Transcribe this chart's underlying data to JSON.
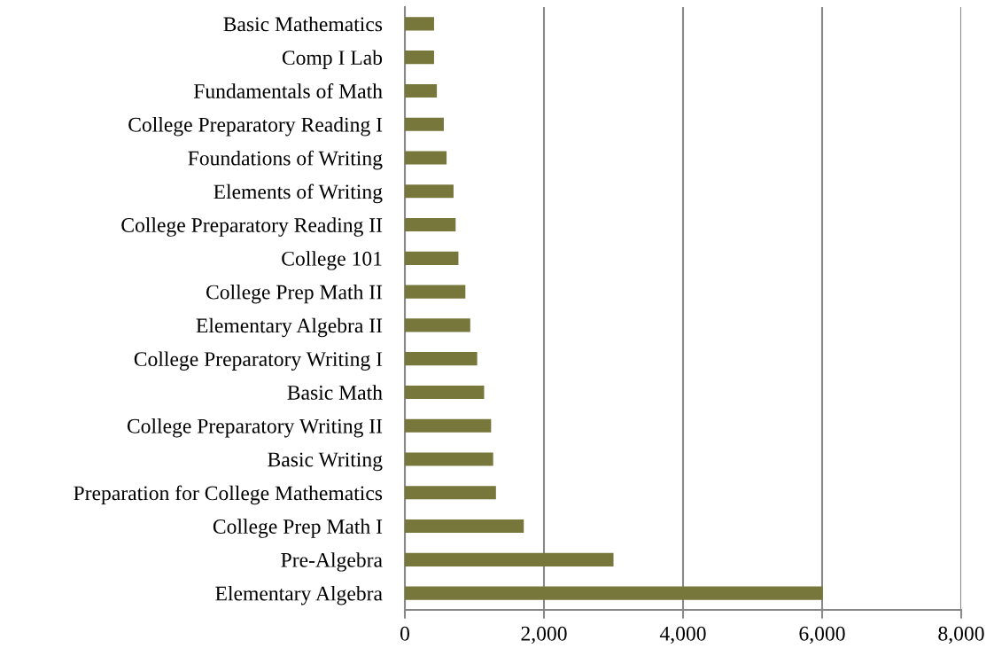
{
  "chart_data": {
    "type": "bar",
    "orientation": "horizontal",
    "categories": [
      "Basic Mathematics",
      "Comp I Lab",
      "Fundamentals of Math",
      "College Preparatory Reading I",
      "Foundations of Writing",
      "Elements of Writing",
      "College Preparatory Reading II",
      "College 101",
      "College Prep Math II",
      "Elementary Algebra II",
      "College Preparatory Writing I",
      "Basic Math",
      "College Preparatory Writing II",
      "Basic Writing",
      "Preparation for College Mathematics",
      "College Prep Math I",
      "Pre-Algebra",
      "Elementary Algebra"
    ],
    "values": [
      420,
      420,
      460,
      560,
      600,
      700,
      730,
      770,
      870,
      940,
      1040,
      1140,
      1240,
      1270,
      1310,
      1710,
      3000,
      6010
    ],
    "color": "#77773c",
    "xlim": [
      0,
      8000
    ],
    "xticks": [
      {
        "value": 0,
        "label": "0"
      },
      {
        "value": 2000,
        "label": "2,000"
      },
      {
        "value": 4000,
        "label": "4,000"
      },
      {
        "value": 6000,
        "label": "6,000"
      },
      {
        "value": 8000,
        "label": "8,000"
      }
    ],
    "grid": "x"
  }
}
